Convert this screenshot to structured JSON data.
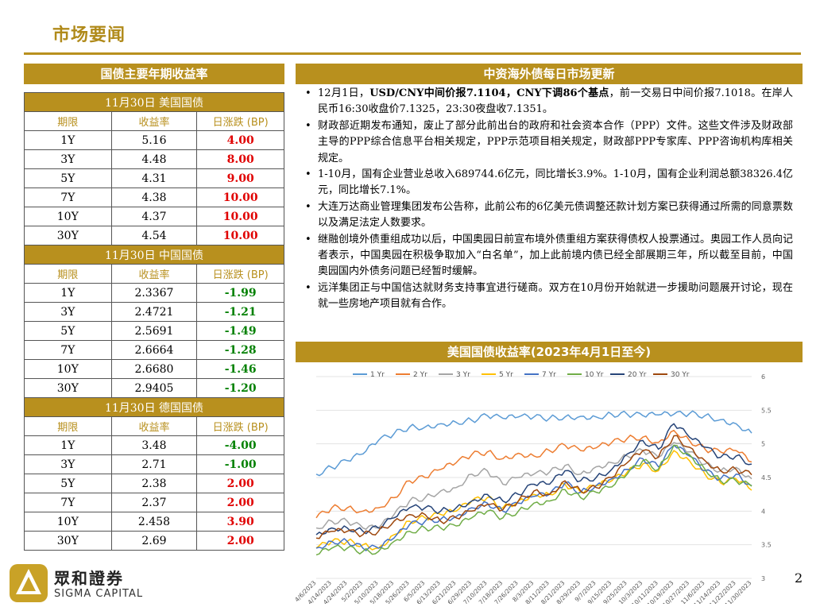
{
  "header": {
    "title": "市场要闻"
  },
  "left": {
    "panel_title": "国债主要年期收益率",
    "col_headers": [
      "期限",
      "收益率",
      "日涨跌 (BP)"
    ],
    "sections": [
      {
        "title": "11月30日  美国国债",
        "rows": [
          {
            "term": "1Y",
            "yield": "5.16",
            "chg": "4.00",
            "dir": "up"
          },
          {
            "term": "3Y",
            "yield": "4.48",
            "chg": "8.00",
            "dir": "up"
          },
          {
            "term": "5Y",
            "yield": "4.31",
            "chg": "9.00",
            "dir": "up"
          },
          {
            "term": "7Y",
            "yield": "4.38",
            "chg": "10.00",
            "dir": "up"
          },
          {
            "term": "10Y",
            "yield": "4.37",
            "chg": "10.00",
            "dir": "up"
          },
          {
            "term": "30Y",
            "yield": "4.54",
            "chg": "10.00",
            "dir": "up"
          }
        ]
      },
      {
        "title": "11月30日  中国国债",
        "rows": [
          {
            "term": "1Y",
            "yield": "2.3367",
            "chg": "-1.99",
            "dir": "down"
          },
          {
            "term": "3Y",
            "yield": "2.4721",
            "chg": "-1.21",
            "dir": "down"
          },
          {
            "term": "5Y",
            "yield": "2.5691",
            "chg": "-1.49",
            "dir": "down"
          },
          {
            "term": "7Y",
            "yield": "2.6664",
            "chg": "-1.28",
            "dir": "down"
          },
          {
            "term": "10Y",
            "yield": "2.6680",
            "chg": "-1.46",
            "dir": "down"
          },
          {
            "term": "30Y",
            "yield": "2.9405",
            "chg": "-1.20",
            "dir": "down"
          }
        ]
      },
      {
        "title": "11月30日  德国国债",
        "rows": [
          {
            "term": "1Y",
            "yield": "3.48",
            "chg": "-4.00",
            "dir": "down"
          },
          {
            "term": "3Y",
            "yield": "2.71",
            "chg": "-1.00",
            "dir": "down"
          },
          {
            "term": "5Y",
            "yield": "2.38",
            "chg": "2.00",
            "dir": "up"
          },
          {
            "term": "7Y",
            "yield": "2.37",
            "chg": "2.00",
            "dir": "up"
          },
          {
            "term": "10Y",
            "yield": "2.458",
            "chg": "3.90",
            "dir": "up"
          },
          {
            "term": "30Y",
            "yield": "2.69",
            "chg": "2.00",
            "dir": "up"
          }
        ]
      }
    ]
  },
  "news": {
    "panel_title": "中资海外债每日市场更新",
    "items": [
      {
        "parts": [
          {
            "t": "12月1日，"
          },
          {
            "t": "USD/CNY中间价报7.1104，CNY下调86个基点",
            "b": true
          },
          {
            "t": "，前一交易日中间价报7.1018。在岸人民币16:30收盘价7.1325，23:30夜盘收7.1351。"
          }
        ]
      },
      {
        "parts": [
          {
            "t": "财政部近期发布通知，废止了部分此前出台的政府和社会资本合作（PPP）文件。这些文件涉及财政部主导的PPP综合信息平台相关规定，PPP示范项目相关规定，财政部PPP专家库、PPP咨询机构库相关规定。"
          }
        ]
      },
      {
        "parts": [
          {
            "t": "1-10月，国有企业营业总收入689744.6亿元，同比增长3.9%。1-10月，国有企业利润总额38326.4亿元，同比增长7.1%。"
          }
        ]
      },
      {
        "parts": [
          {
            "t": "大连万达商业管理集团发布公告称，此前公布的6亿美元债调整还款计划方案已获得通过所需的同意票数以及满足法定人数要求。"
          }
        ]
      },
      {
        "parts": [
          {
            "t": "继融创境外债重组成功以后，中国奥园日前宣布境外债重组方案获得债权人投票通过。奥园工作人员向记者表示，中国奥园在积极争取加入“白名单”，加上此前境内债已经全部展期三年，所以截至目前，中国奥园国内外债务问题已经暂时缓解。"
          }
        ]
      },
      {
        "parts": [
          {
            "t": "远洋集团正与中国信达就财务支持事宜进行磋商。双方在10月份开始就进一步援助问题展开讨论，现在就一些房地产项目就有合作。"
          }
        ]
      }
    ]
  },
  "chart_panel_title": "美国国债收益率(2023年4月1日至今)",
  "chart_data": {
    "type": "line",
    "title": "",
    "ylim": [
      3,
      6
    ],
    "y_ticks": [
      "3",
      "3.5",
      "4",
      "4.5",
      "5",
      "5.5",
      "6"
    ],
    "x_ticks": [
      "4/6/2023",
      "4/14/2023",
      "4/24/2023",
      "5/2/2023",
      "5/10/2023",
      "5/18/2023",
      "5/26/2023",
      "6/5/2023",
      "6/13/2023",
      "6/21/2023",
      "6/29/2023",
      "7/10/2023",
      "7/18/2023",
      "7/26/2023",
      "8/3/2023",
      "8/11/2023",
      "8/21/2023",
      "8/29/2023",
      "9/7/2023",
      "9/15/2023",
      "9/25/2023",
      "10/3/2023",
      "10/11/2023",
      "10/19/2023",
      "10/27/2023",
      "11/6/2023",
      "11/14/2023",
      "11/22/2023",
      "11/30/2023"
    ],
    "legend_position": "top",
    "grid": true,
    "series": [
      {
        "name": "1 Yr",
        "color": "#5b9bd5",
        "values": [
          4.55,
          4.65,
          4.75,
          4.85,
          5.05,
          5.15,
          5.25,
          5.25,
          5.3,
          5.32,
          5.35,
          5.42,
          5.38,
          5.4,
          5.4,
          5.38,
          5.4,
          5.41,
          5.4,
          5.44,
          5.44,
          5.42,
          5.43,
          5.44,
          5.45,
          5.42,
          5.36,
          5.3,
          5.16
        ]
      },
      {
        "name": "2 Yr",
        "color": "#ed7d31",
        "values": [
          3.9,
          4.05,
          4.05,
          4.0,
          4.05,
          4.2,
          4.45,
          4.5,
          4.62,
          4.72,
          4.84,
          4.88,
          4.78,
          4.86,
          4.82,
          4.9,
          4.98,
          4.9,
          4.94,
          5.02,
          5.08,
          5.1,
          5.02,
          5.2,
          5.05,
          4.92,
          4.88,
          4.9,
          4.73
        ]
      },
      {
        "name": "3 Yr",
        "color": "#a5a5a5",
        "values": [
          3.75,
          3.85,
          3.85,
          3.75,
          3.75,
          3.95,
          4.15,
          4.2,
          4.3,
          4.35,
          4.55,
          4.6,
          4.4,
          4.5,
          4.55,
          4.58,
          4.68,
          4.55,
          4.66,
          4.72,
          4.82,
          4.9,
          4.8,
          5.02,
          4.88,
          4.7,
          4.6,
          4.65,
          4.48
        ]
      },
      {
        "name": "5 Yr",
        "color": "#ffc000",
        "values": [
          3.45,
          3.55,
          3.55,
          3.5,
          3.45,
          3.65,
          3.85,
          3.9,
          3.95,
          4.0,
          4.15,
          4.2,
          4.05,
          4.15,
          4.25,
          4.25,
          4.4,
          4.28,
          4.38,
          4.45,
          4.58,
          4.7,
          4.6,
          4.9,
          4.75,
          4.55,
          4.42,
          4.48,
          4.31
        ]
      },
      {
        "name": "7 Yr",
        "color": "#4472c4",
        "values": [
          3.45,
          3.55,
          3.55,
          3.45,
          3.45,
          3.6,
          3.8,
          3.85,
          3.88,
          3.92,
          4.05,
          4.12,
          4.0,
          4.12,
          4.22,
          4.25,
          4.42,
          4.28,
          4.38,
          4.48,
          4.62,
          4.78,
          4.66,
          4.98,
          4.82,
          4.6,
          4.48,
          4.55,
          4.38
        ]
      },
      {
        "name": "10 Yr",
        "color": "#70ad47",
        "values": [
          3.35,
          3.45,
          3.45,
          3.4,
          3.4,
          3.55,
          3.7,
          3.75,
          3.75,
          3.78,
          3.9,
          4.0,
          3.9,
          4.0,
          4.12,
          4.15,
          4.32,
          4.2,
          4.28,
          4.36,
          4.55,
          4.75,
          4.62,
          4.98,
          4.84,
          4.62,
          4.45,
          4.45,
          4.37
        ]
      },
      {
        "name": "20 Yr",
        "color": "#264478",
        "values": [
          3.65,
          3.75,
          3.75,
          3.7,
          3.75,
          3.9,
          4.05,
          4.05,
          4.0,
          4.05,
          4.15,
          4.25,
          4.15,
          4.25,
          4.4,
          4.4,
          4.6,
          4.45,
          4.5,
          4.62,
          4.85,
          5.05,
          4.92,
          5.3,
          5.1,
          4.95,
          4.8,
          4.82,
          4.7
        ]
      },
      {
        "name": "30 Yr",
        "color": "#9e480e",
        "values": [
          3.6,
          3.7,
          3.7,
          3.65,
          3.7,
          3.85,
          3.95,
          3.95,
          3.85,
          3.9,
          4.0,
          4.1,
          4.02,
          4.15,
          4.3,
          4.25,
          4.45,
          4.3,
          4.35,
          4.5,
          4.72,
          4.9,
          4.8,
          5.12,
          4.95,
          4.75,
          4.6,
          4.62,
          4.54
        ]
      }
    ]
  },
  "footer": {
    "logo_name": "眾和證券",
    "logo_en": "SIGMA CAPITAL",
    "page": "2"
  }
}
